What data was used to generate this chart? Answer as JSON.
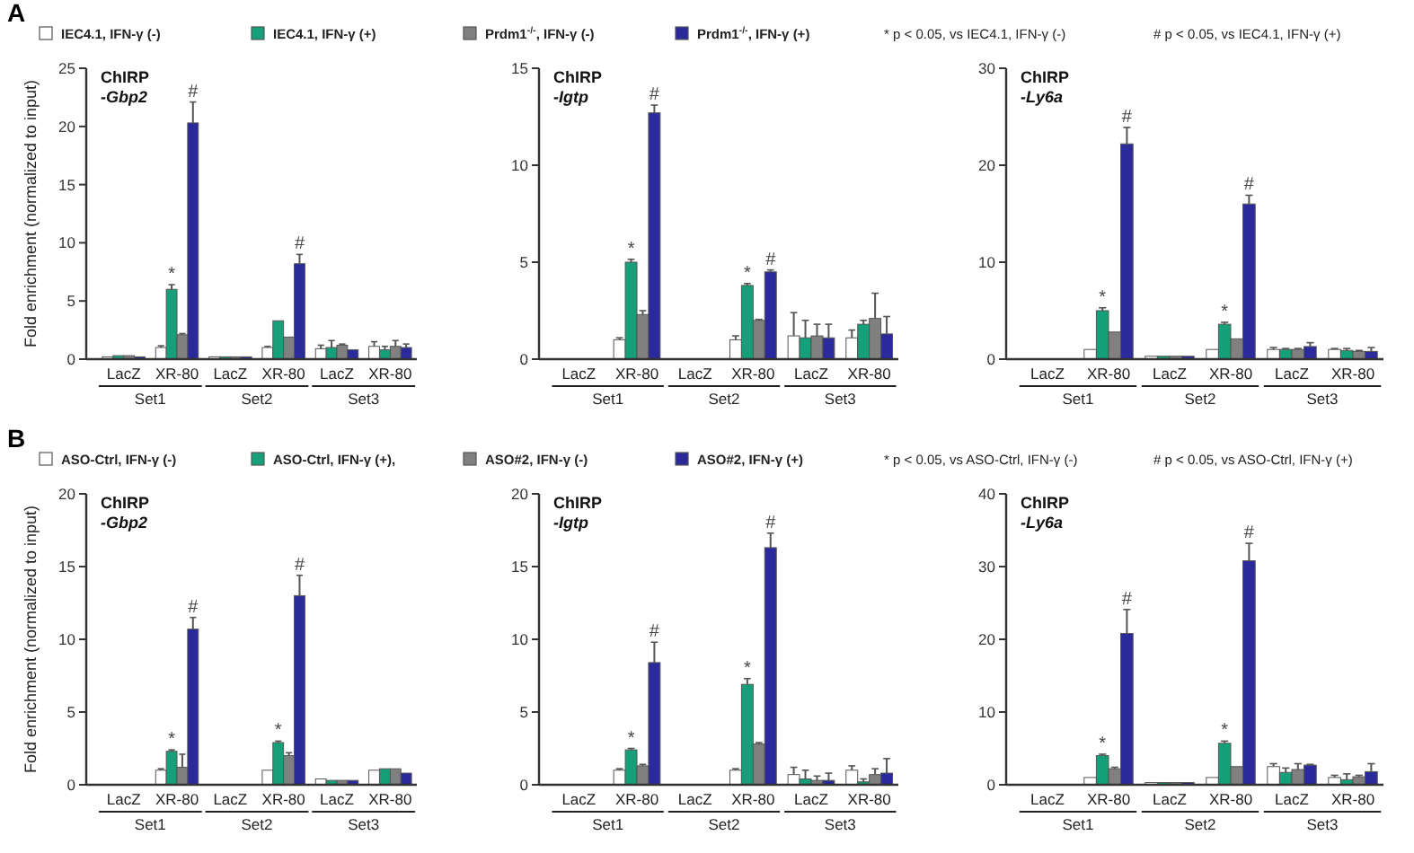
{
  "chart_data": [
    {
      "type": "bar",
      "title": "ChIRP",
      "subtitle": "-Gbp2",
      "ylabel": "Fold enrichment (normalized to input)",
      "categories": [
        "LacZ",
        "XR-80",
        "LacZ",
        "XR-80",
        "LacZ",
        "XR-80"
      ],
      "ylim": [
        0,
        25
      ],
      "yticks": [
        0,
        5,
        10,
        15,
        20,
        25
      ],
      "legend": "top",
      "annotations": [
        "Set1",
        "Set2",
        "Set3",
        "A",
        "* p < 0.05, vs IEC4.1, IFN-γ (-)",
        "# p < 0.05, vs IEC4.1, IFN-γ (+)"
      ],
      "series": [
        {
          "name": "IEC4.1, IFN-γ (-)",
          "color": "#ffffff",
          "values": [
            0.2,
            1.0,
            0.2,
            1.0,
            0.9,
            1.1
          ],
          "errors": [
            null,
            [
              1.0,
              1.15
            ],
            null,
            [
              1.0,
              1.1
            ],
            [
              0.9,
              1.2
            ],
            [
              1.1,
              1.5
            ]
          ]
        },
        {
          "name": "IEC4.1, IFN-γ (+)",
          "color": "#16a07a",
          "values": [
            0.3,
            6.0,
            0.2,
            3.3,
            1.0,
            0.8
          ],
          "errors": [
            null,
            [
              6.0,
              6.4
            ],
            null,
            null,
            [
              1.0,
              1.6
            ],
            [
              0.8,
              1.1
            ]
          ],
          "value_labels": [
            null,
            "*",
            null,
            null,
            null,
            null
          ]
        },
        {
          "name": "Prdm1$^{-/-}$, IFN-γ (-)",
          "color": "#808080",
          "values": [
            0.3,
            2.1,
            0.2,
            1.9,
            1.2,
            1.1
          ],
          "errors": [
            null,
            [
              2.1,
              2.2
            ],
            null,
            null,
            [
              1.2,
              1.3
            ],
            [
              1.1,
              1.6
            ]
          ]
        },
        {
          "name": "Prdm1$^{-/-}$, IFN-γ (+)",
          "color": "#2a2a9c",
          "values": [
            0.2,
            20.3,
            0.2,
            8.2,
            0.8,
            1.0
          ],
          "errors": [
            null,
            [
              20.3,
              22.1
            ],
            null,
            [
              8.2,
              9.0
            ],
            null,
            [
              1.0,
              1.3
            ]
          ],
          "value_labels": [
            null,
            "#",
            null,
            "#",
            null,
            null
          ]
        }
      ]
    },
    {
      "type": "bar",
      "title": "ChIRP",
      "subtitle": "-Igtp",
      "categories": [
        "LacZ",
        "XR-80",
        "LacZ",
        "XR-80",
        "LacZ",
        "XR-80"
      ],
      "ylim": [
        0,
        15
      ],
      "yticks": [
        0,
        5,
        10,
        15
      ],
      "annotations": [
        "Set1",
        "Set2",
        "Set3"
      ],
      "series": [
        {
          "color": "#ffffff",
          "values": [
            0,
            1.0,
            0,
            1.0,
            1.2,
            1.1
          ],
          "errors": [
            null,
            [
              1.0,
              1.1
            ],
            null,
            [
              1.0,
              1.2
            ],
            [
              1.2,
              2.4
            ],
            [
              1.1,
              1.5
            ]
          ]
        },
        {
          "color": "#16a07a",
          "values": [
            0,
            5.0,
            0,
            3.8,
            1.1,
            1.8
          ],
          "errors": [
            null,
            [
              5.0,
              5.15
            ],
            null,
            [
              3.8,
              3.9
            ],
            [
              1.1,
              2.0
            ],
            [
              1.8,
              2.0
            ]
          ],
          "value_labels": [
            null,
            "*",
            null,
            "*",
            null,
            null
          ]
        },
        {
          "color": "#808080",
          "values": [
            0,
            2.3,
            0,
            2.0,
            1.2,
            2.1
          ],
          "errors": [
            null,
            [
              2.3,
              2.5
            ],
            null,
            [
              2.0,
              2.05
            ],
            [
              1.2,
              1.8
            ],
            [
              2.1,
              3.4
            ]
          ]
        },
        {
          "color": "#2a2a9c",
          "values": [
            0,
            12.7,
            0,
            4.5,
            1.1,
            1.3
          ],
          "errors": [
            null,
            [
              12.7,
              13.1
            ],
            null,
            [
              4.5,
              4.6
            ],
            [
              1.1,
              1.8
            ],
            [
              1.3,
              2.2
            ]
          ],
          "value_labels": [
            null,
            "#",
            null,
            "#",
            null,
            null
          ]
        }
      ]
    },
    {
      "type": "bar",
      "title": "ChIRP",
      "subtitle": "-Ly6a",
      "categories": [
        "LacZ",
        "XR-80",
        "LacZ",
        "XR-80",
        "LacZ",
        "XR-80"
      ],
      "ylim": [
        0,
        30
      ],
      "yticks": [
        0,
        10,
        20,
        30
      ],
      "annotations": [
        "Set1",
        "Set2",
        "Set3"
      ],
      "series": [
        {
          "color": "#ffffff",
          "values": [
            0,
            1.0,
            0.3,
            1.0,
            1.0,
            1.0
          ],
          "errors": [
            null,
            null,
            null,
            null,
            [
              1.0,
              1.2
            ],
            [
              1.0,
              1.1
            ]
          ]
        },
        {
          "color": "#16a07a",
          "values": [
            0,
            5.0,
            0.3,
            3.6,
            1.0,
            0.9
          ],
          "errors": [
            null,
            [
              5.0,
              5.3
            ],
            null,
            [
              3.6,
              3.8
            ],
            [
              1.0,
              1.1
            ],
            [
              0.9,
              1.1
            ]
          ],
          "value_labels": [
            null,
            "*",
            null,
            "*",
            null,
            null
          ]
        },
        {
          "color": "#808080",
          "values": [
            0,
            2.8,
            0.3,
            2.1,
            1.0,
            0.8
          ],
          "errors": [
            null,
            null,
            null,
            null,
            [
              1.0,
              1.1
            ],
            [
              0.8,
              0.9
            ]
          ]
        },
        {
          "color": "#2a2a9c",
          "values": [
            0,
            22.2,
            0.3,
            16.0,
            1.3,
            0.8
          ],
          "errors": [
            null,
            [
              22.2,
              23.9
            ],
            null,
            [
              16.0,
              16.9
            ],
            [
              1.3,
              1.7
            ],
            [
              0.8,
              1.2
            ]
          ],
          "value_labels": [
            null,
            "#",
            null,
            "#",
            null,
            null
          ]
        }
      ]
    },
    {
      "type": "bar",
      "title": "ChIRP",
      "subtitle": "-Gbp2",
      "ylabel": "Fold enrichment (normalized to input)",
      "categories": [
        "LacZ",
        "XR-80",
        "LacZ",
        "XR-80",
        "LacZ",
        "XR-80"
      ],
      "ylim": [
        0,
        20
      ],
      "yticks": [
        0,
        5,
        10,
        15,
        20
      ],
      "legend": "top",
      "annotations": [
        "Set1",
        "Set2",
        "Set3",
        "B",
        "* p < 0.05, vs ASO-Ctrl, IFN-γ (-)",
        "# p < 0.05, vs ASO-Ctrl, IFN-γ (+)"
      ],
      "series": [
        {
          "name": "ASO-Ctrl, IFN-γ (-)",
          "color": "#ffffff",
          "values": [
            0,
            1.0,
            0,
            1.0,
            0.4,
            1.0
          ],
          "errors": [
            null,
            [
              1.0,
              1.1
            ],
            null,
            null,
            null,
            null
          ]
        },
        {
          "name": "ASO-Ctrl, IFN-γ (+),",
          "color": "#16a07a",
          "values": [
            0,
            2.3,
            0,
            2.9,
            0.3,
            1.1
          ],
          "errors": [
            null,
            [
              2.3,
              2.4
            ],
            null,
            [
              2.9,
              3.0
            ],
            null,
            null
          ],
          "value_labels": [
            null,
            "*",
            null,
            "*",
            null,
            null
          ]
        },
        {
          "name": "ASO#2, IFN-γ (-)",
          "color": "#808080",
          "values": [
            0,
            1.2,
            0,
            2.0,
            0.3,
            1.1
          ],
          "errors": [
            null,
            [
              1.2,
              2.1
            ],
            null,
            [
              2.0,
              2.2
            ],
            null,
            null
          ]
        },
        {
          "name": "ASO#2, IFN-γ (+)",
          "color": "#2a2a9c",
          "values": [
            0,
            10.7,
            0,
            13.0,
            0.3,
            0.8
          ],
          "errors": [
            null,
            [
              10.7,
              11.5
            ],
            null,
            [
              13.0,
              14.4
            ],
            null,
            null
          ],
          "value_labels": [
            null,
            "#",
            null,
            "#",
            null,
            null
          ]
        }
      ]
    },
    {
      "type": "bar",
      "title": "ChIRP",
      "subtitle": "-Igtp",
      "categories": [
        "LacZ",
        "XR-80",
        "LacZ",
        "XR-80",
        "LacZ",
        "XR-80"
      ],
      "ylim": [
        0,
        20
      ],
      "yticks": [
        0,
        5,
        10,
        15,
        20
      ],
      "annotations": [
        "Set1",
        "Set2",
        "Set3"
      ],
      "series": [
        {
          "color": "#ffffff",
          "values": [
            0,
            1.0,
            0,
            1.0,
            0.7,
            1.0
          ],
          "errors": [
            null,
            [
              1.0,
              1.1
            ],
            null,
            [
              1.0,
              1.1
            ],
            [
              0.7,
              1.2
            ],
            [
              1.0,
              1.3
            ]
          ]
        },
        {
          "color": "#16a07a",
          "values": [
            0,
            2.4,
            0,
            6.9,
            0.4,
            0.2
          ],
          "errors": [
            null,
            [
              2.4,
              2.5
            ],
            null,
            [
              6.9,
              7.3
            ],
            [
              0.4,
              1.0
            ],
            [
              0.2,
              0.4
            ]
          ],
          "value_labels": [
            null,
            "*",
            null,
            "*",
            null,
            null
          ]
        },
        {
          "color": "#808080",
          "values": [
            0,
            1.3,
            0,
            2.8,
            0.3,
            0.7
          ],
          "errors": [
            null,
            [
              1.3,
              1.4
            ],
            null,
            [
              2.8,
              2.9
            ],
            [
              0.3,
              0.6
            ],
            [
              0.7,
              1.1
            ]
          ]
        },
        {
          "color": "#2a2a9c",
          "values": [
            0,
            8.4,
            0,
            16.3,
            0.3,
            0.8
          ],
          "errors": [
            null,
            [
              8.4,
              9.8
            ],
            null,
            [
              16.3,
              17.3
            ],
            [
              0.3,
              0.8
            ],
            [
              0.8,
              1.8
            ]
          ],
          "value_labels": [
            null,
            "#",
            null,
            "#",
            null,
            null
          ]
        }
      ]
    },
    {
      "type": "bar",
      "title": "ChIRP",
      "subtitle": "-Ly6a",
      "categories": [
        "LacZ",
        "XR-80",
        "LacZ",
        "XR-80",
        "LacZ",
        "XR-80"
      ],
      "ylim": [
        0,
        40
      ],
      "yticks": [
        0,
        10,
        20,
        30,
        40
      ],
      "annotations": [
        "Set1",
        "Set2",
        "Set3"
      ],
      "series": [
        {
          "color": "#ffffff",
          "values": [
            0,
            1.0,
            0.3,
            1.0,
            2.5,
            1.0
          ],
          "errors": [
            null,
            null,
            null,
            null,
            [
              2.5,
              2.9
            ],
            [
              1.0,
              1.3
            ]
          ]
        },
        {
          "color": "#16a07a",
          "values": [
            0,
            4.0,
            0.3,
            5.7,
            1.7,
            0.7
          ],
          "errors": [
            null,
            [
              4.0,
              4.2
            ],
            null,
            [
              5.7,
              6.0
            ],
            [
              1.7,
              2.3
            ],
            [
              0.7,
              1.5
            ]
          ],
          "value_labels": [
            null,
            "*",
            null,
            "*",
            null,
            null
          ]
        },
        {
          "color": "#808080",
          "values": [
            0,
            2.2,
            0.3,
            2.5,
            2.1,
            1.1
          ],
          "errors": [
            null,
            [
              2.2,
              2.4
            ],
            null,
            null,
            [
              2.1,
              2.9
            ],
            [
              1.1,
              1.3
            ]
          ]
        },
        {
          "color": "#2a2a9c",
          "values": [
            0,
            20.8,
            0.3,
            30.8,
            2.7,
            1.8
          ],
          "errors": [
            null,
            [
              20.8,
              24.1
            ],
            null,
            [
              30.8,
              33.2
            ],
            [
              2.7,
              2.8
            ],
            [
              1.8,
              2.9
            ]
          ],
          "value_labels": [
            null,
            "#",
            null,
            "#",
            null,
            null
          ]
        }
      ]
    }
  ]
}
